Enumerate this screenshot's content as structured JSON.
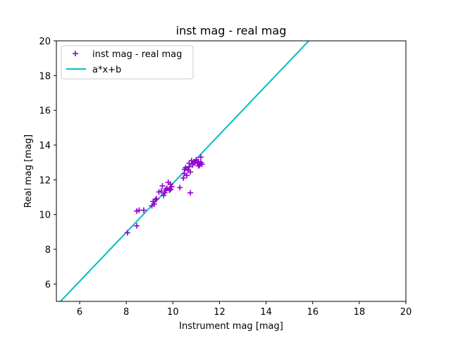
{
  "chart_data": {
    "type": "scatter",
    "title": "inst mag - real mag",
    "xlabel": "Instrument mag [mag]",
    "ylabel": "Real mag [mag]",
    "xlim": [
      5,
      20
    ],
    "ylim": [
      5,
      20
    ],
    "xticks": [
      6,
      8,
      10,
      12,
      14,
      16,
      18,
      20
    ],
    "yticks": [
      6,
      8,
      10,
      12,
      14,
      16,
      18,
      20
    ],
    "grid": false,
    "legend_position": "upper-left",
    "series": [
      {
        "name": "inst mag - real mag",
        "kind": "scatter",
        "marker": "+",
        "color": "#9400d3",
        "points": [
          [
            8.05,
            8.95
          ],
          [
            8.45,
            9.35
          ],
          [
            8.45,
            10.2
          ],
          [
            8.55,
            10.25
          ],
          [
            8.75,
            10.25
          ],
          [
            9.1,
            10.5
          ],
          [
            9.15,
            10.75
          ],
          [
            9.2,
            10.6
          ],
          [
            9.25,
            10.85
          ],
          [
            9.3,
            10.9
          ],
          [
            9.4,
            11.3
          ],
          [
            9.5,
            11.35
          ],
          [
            9.55,
            11.65
          ],
          [
            9.6,
            11.1
          ],
          [
            9.65,
            11.25
          ],
          [
            9.7,
            11.45
          ],
          [
            9.75,
            11.5
          ],
          [
            9.8,
            11.85
          ],
          [
            9.85,
            11.4
          ],
          [
            9.9,
            11.45
          ],
          [
            9.9,
            11.75
          ],
          [
            9.95,
            11.6
          ],
          [
            10.3,
            11.55
          ],
          [
            10.45,
            12.1
          ],
          [
            10.5,
            12.35
          ],
          [
            10.5,
            12.6
          ],
          [
            10.55,
            12.7
          ],
          [
            10.6,
            12.25
          ],
          [
            10.65,
            12.55
          ],
          [
            10.7,
            12.75
          ],
          [
            10.7,
            12.95
          ],
          [
            10.75,
            11.25
          ],
          [
            10.75,
            12.45
          ],
          [
            10.8,
            13.1
          ],
          [
            10.85,
            12.85
          ],
          [
            10.9,
            13.05
          ],
          [
            10.95,
            13.0
          ],
          [
            11.0,
            13.15
          ],
          [
            11.05,
            12.95
          ],
          [
            11.1,
            12.8
          ],
          [
            11.1,
            13.05
          ],
          [
            11.15,
            12.85
          ],
          [
            11.2,
            13.0
          ],
          [
            11.2,
            13.3
          ],
          [
            11.25,
            12.9
          ]
        ]
      },
      {
        "name": "a*x+b",
        "kind": "line",
        "color": "#00bfbf",
        "slope": 1.408,
        "intercept": -2.29
      }
    ]
  }
}
